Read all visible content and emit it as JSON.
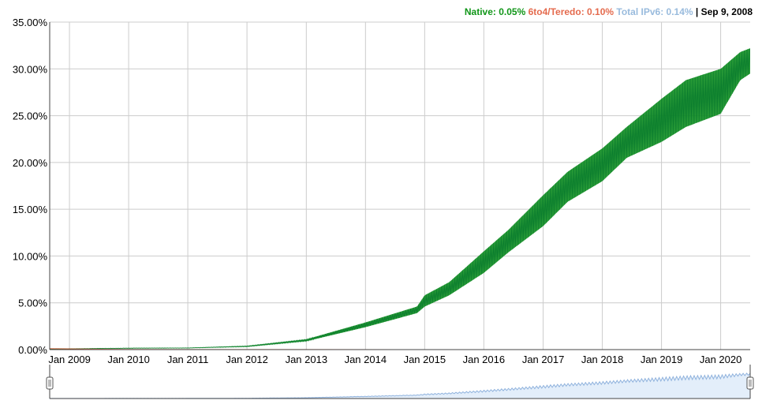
{
  "legend": {
    "native_label": "Native: 0.05%",
    "teredo_label": "6to4/Teredo: 0.10%",
    "total_label": "Total IPv6: 0.14%",
    "separator": "|",
    "date": "Sep 9, 2008",
    "colors": {
      "native": "#109618",
      "teredo": "#dc3912",
      "total": "#99bbdd",
      "date": "#000000"
    }
  },
  "chart_data": {
    "type": "line",
    "title": "",
    "xlabel": "",
    "ylabel": "",
    "x_range": [
      "2008-09-01",
      "2020-07-01"
    ],
    "ylim": [
      0,
      35
    ],
    "y_ticks": [
      "0.00%",
      "5.00%",
      "10.00%",
      "15.00%",
      "20.00%",
      "25.00%",
      "30.00%",
      "35.00%"
    ],
    "y_tick_values": [
      0,
      5,
      10,
      15,
      20,
      25,
      30,
      35
    ],
    "x_ticks": [
      "Jan 2009",
      "Jan 2010",
      "Jan 2011",
      "Jan 2012",
      "Jan 2013",
      "Jan 2014",
      "Jan 2015",
      "Jan 2016",
      "Jan 2017",
      "Jan 2018",
      "Jan 2019",
      "Jan 2020"
    ],
    "x_tick_dates": [
      "2009-01-01",
      "2010-01-01",
      "2011-01-01",
      "2012-01-01",
      "2013-01-01",
      "2014-01-01",
      "2015-01-01",
      "2016-01-01",
      "2017-01-01",
      "2018-01-01",
      "2019-01-01",
      "2020-01-01"
    ],
    "grid": true,
    "series": [
      {
        "name": "Native",
        "color": "#109618",
        "band": true,
        "points": [
          {
            "x": "2008-09-01",
            "low": 0.05,
            "high": 0.08
          },
          {
            "x": "2010-01-01",
            "low": 0.12,
            "high": 0.18
          },
          {
            "x": "2011-01-01",
            "low": 0.15,
            "high": 0.2
          },
          {
            "x": "2012-01-01",
            "low": 0.3,
            "high": 0.4
          },
          {
            "x": "2013-01-01",
            "low": 0.9,
            "high": 1.1
          },
          {
            "x": "2014-01-01",
            "low": 2.4,
            "high": 2.9
          },
          {
            "x": "2014-11-15",
            "low": 3.9,
            "high": 4.6
          },
          {
            "x": "2015-01-01",
            "low": 4.6,
            "high": 5.8
          },
          {
            "x": "2015-06-01",
            "low": 5.8,
            "high": 7.2
          },
          {
            "x": "2016-01-01",
            "low": 8.2,
            "high": 10.5
          },
          {
            "x": "2016-06-01",
            "low": 10.4,
            "high": 12.8
          },
          {
            "x": "2017-01-01",
            "low": 13.2,
            "high": 16.5
          },
          {
            "x": "2017-06-01",
            "low": 15.8,
            "high": 19.0
          },
          {
            "x": "2018-01-01",
            "low": 18.0,
            "high": 21.5
          },
          {
            "x": "2018-06-01",
            "low": 20.5,
            "high": 23.8
          },
          {
            "x": "2019-01-01",
            "low": 22.2,
            "high": 26.8
          },
          {
            "x": "2019-06-01",
            "low": 23.8,
            "high": 28.8
          },
          {
            "x": "2020-01-01",
            "low": 25.2,
            "high": 30.0
          },
          {
            "x": "2020-05-01",
            "low": 28.8,
            "high": 31.8
          },
          {
            "x": "2020-07-01",
            "low": 29.5,
            "high": 32.2
          }
        ]
      },
      {
        "name": "6to4/Teredo",
        "color": "#dc3912",
        "band": false,
        "points": [
          {
            "x": "2008-09-01",
            "y": 0.1
          },
          {
            "x": "2010-01-01",
            "y": 0.02
          },
          {
            "x": "2012-01-01",
            "y": 0.01
          },
          {
            "x": "2016-01-01",
            "y": 0.0
          },
          {
            "x": "2020-07-01",
            "y": 0.0
          }
        ]
      }
    ]
  }
}
